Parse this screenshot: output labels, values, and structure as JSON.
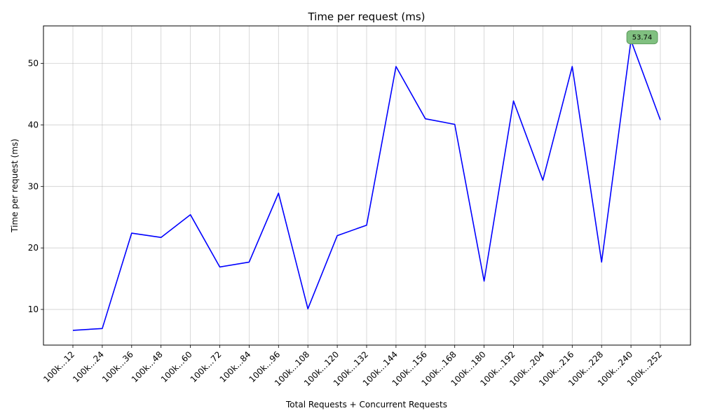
{
  "chart_data": {
    "type": "line",
    "title": "Time per request (ms)",
    "xlabel": "Total Requests + Concurrent Requests",
    "ylabel": "Time per request (ms)",
    "categories": [
      "100k...12",
      "100k...24",
      "100k...36",
      "100k...48",
      "100k...60",
      "100k...72",
      "100k...84",
      "100k...96",
      "100k...108",
      "100k...120",
      "100k...132",
      "100k...144",
      "100k...156",
      "100k...168",
      "100k...180",
      "100k...192",
      "100k...204",
      "100k...216",
      "100k...228",
      "100k...240",
      "100k...252"
    ],
    "series": [
      {
        "values": [
          6.6,
          6.9,
          22.4,
          21.7,
          25.4,
          16.9,
          17.7,
          28.9,
          10.1,
          22.0,
          23.7,
          49.5,
          41.0,
          40.1,
          14.6,
          43.9,
          31.0,
          49.5,
          17.7,
          53.74,
          40.8
        ],
        "color": "#0000ff"
      }
    ],
    "ylim": [
      4.2,
      56.1
    ],
    "yticks": [
      10,
      20,
      30,
      40,
      50
    ],
    "grid": true,
    "annotation": {
      "category": "100k...240",
      "value": 53.74,
      "label": "53.74",
      "marker_color": "#008000",
      "box_color": "#80c080"
    }
  }
}
